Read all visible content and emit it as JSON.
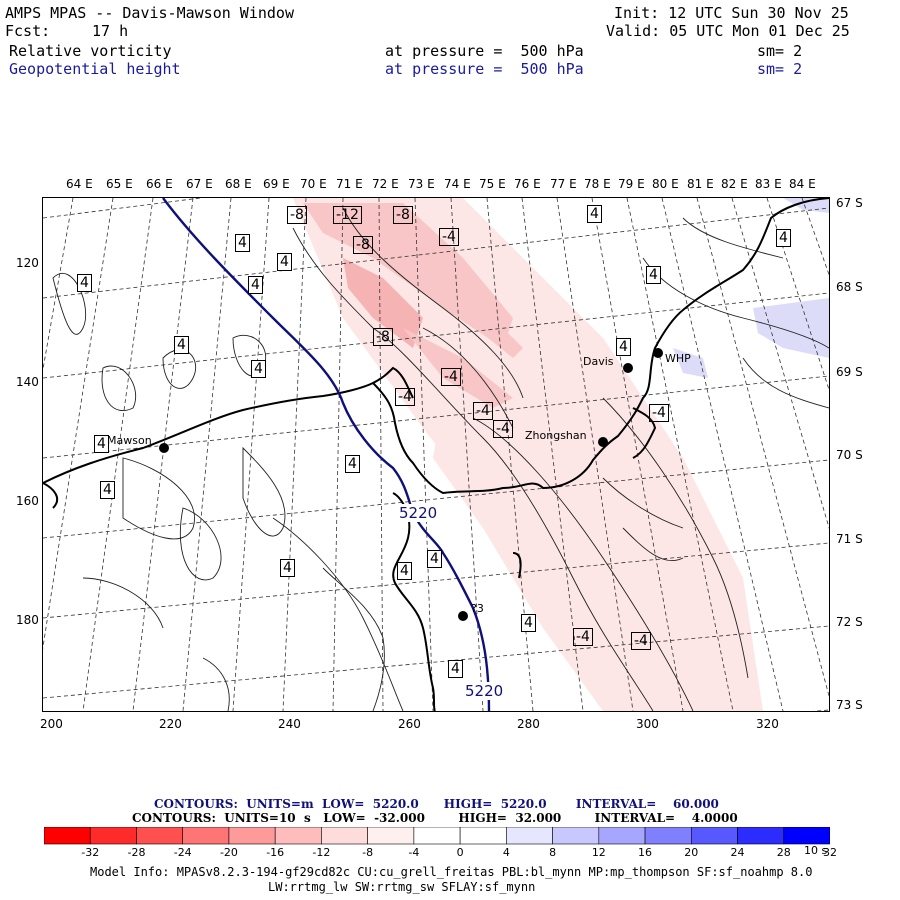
{
  "header": {
    "title": "AMPS MPAS -- Davis-Mawson Window",
    "fcst_label": "Fcst:",
    "fcst_value": "17 h",
    "init": "Init: 12 UTC Sun 30 Nov 25",
    "valid": "Valid: 05 UTC Mon 01 Dec 25",
    "field1": {
      "name": "Relative vorticity",
      "level": "at pressure =  500 hPa",
      "sm": "sm= 2"
    },
    "field2": {
      "name": "Geopotential height",
      "level": "at pressure =  500 hPa",
      "sm": "sm= 2"
    }
  },
  "map": {
    "lon_labels": [
      "64 E",
      "65 E",
      "66 E",
      "67 E",
      "68 E",
      "69 E",
      "70 E",
      "71 E",
      "72 E",
      "73 E",
      "74 E",
      "75 E",
      "76 E",
      "77 E",
      "78 E",
      "79 E",
      "80 E",
      "81 E",
      "82 E",
      "83 E",
      "84 E"
    ],
    "lat_labels": [
      "67 S",
      "68 S",
      "69 S",
      "70 S",
      "71 S",
      "72 S",
      "73 S"
    ],
    "x_ticks": [
      "200",
      "220",
      "240",
      "260",
      "280",
      "300",
      "320"
    ],
    "y_ticks": [
      "120",
      "140",
      "160",
      "180"
    ],
    "stations": [
      {
        "name": "Mawson"
      },
      {
        "name": "Davis"
      },
      {
        "name": "WHP"
      },
      {
        "name": "Zhongshan"
      },
      {
        "name": "?3"
      }
    ],
    "contour_labels": [
      "-8",
      "-12",
      "-8",
      "-8",
      "-4",
      "-8",
      "-4",
      "-4",
      "-4",
      "-4",
      "-4",
      "-4",
      "-4",
      "4",
      "4",
      "4",
      "4",
      "4",
      "4",
      "4",
      "4",
      "4",
      "4",
      "4",
      "4",
      "4",
      "4",
      "4",
      "4",
      "4",
      "4"
    ],
    "height_labels": [
      "5220",
      "5220"
    ],
    "colors": {
      "height_line": "#10107a",
      "neg_light": "#fde4e4",
      "neg_mid": "#f8c4c4",
      "pos_light": "#dcdcf8"
    }
  },
  "footer": {
    "contours1": "CONTOURS:  UNITS=m  LOW=  5220.0      HIGH=  5220.0       INTERVAL=    60.000",
    "contours2": "CONTOURS:  UNITS=10  s   LOW=  -32.000        HIGH=  32.000        INTERVAL=    4.0000",
    "colorbar": {
      "colors": [
        "#ff0000",
        "#ff2a2a",
        "#ff5050",
        "#ff7474",
        "#ff9a9a",
        "#ffbcbc",
        "#ffdcdc",
        "#fff0f0",
        "#ffffff",
        "#ffffff",
        "#e6e6ff",
        "#c8c8ff",
        "#a6a6ff",
        "#8080ff",
        "#5858ff",
        "#2c2cff",
        "#0000ff"
      ],
      "labels": [
        "-32",
        "-28",
        "-24",
        "-20",
        "-16",
        "-12",
        "-8",
        "-4",
        "0",
        "4",
        "8",
        "12",
        "16",
        "20",
        "24",
        "28",
        "32"
      ],
      "unit": "10 s"
    },
    "model_info1": "Model Info: MPASv8.2.3-194-gf29cd82c CU:cu_grell_freitas PBL:bl_mynn MP:mp_thompson SF:sf_noahmp 8.0",
    "model_info2": "LW:rrtmg_lw SW:rrtmg_sw SFLAY:sf_mynn"
  }
}
